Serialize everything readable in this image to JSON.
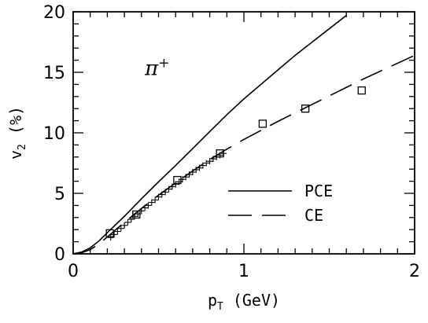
{
  "chart_data": {
    "type": "scatter",
    "title": "",
    "xlabel": "p",
    "xlabel_sub": "T",
    "xlabel_unit": "(GeV)",
    "ylabel": "v",
    "ylabel_sub": "2",
    "ylabel_unit": "(%)",
    "xlim": [
      0,
      2
    ],
    "ylim": [
      0,
      20
    ],
    "x_ticks": [
      0,
      1,
      2
    ],
    "x_tick_labels": [
      "0",
      "1",
      "2"
    ],
    "y_ticks": [
      0,
      5,
      10,
      15,
      20
    ],
    "y_tick_labels": [
      "0",
      "5",
      "10",
      "15",
      "20"
    ],
    "grid": false,
    "annotation": {
      "text": "π",
      "sup": "+",
      "x": 0.42,
      "y": 15.3
    },
    "legend": {
      "placement": "lower-right",
      "entries": [
        {
          "label": "PCE",
          "style": "solid"
        },
        {
          "label": "CE",
          "style": "dashed"
        }
      ]
    },
    "series": [
      {
        "name": "PCE",
        "kind": "line",
        "style": "solid",
        "x": [
          0,
          0.05,
          0.1,
          0.15,
          0.2,
          0.3,
          0.4,
          0.5,
          0.6,
          0.7,
          0.8,
          0.9,
          1.0,
          1.1,
          1.2,
          1.3,
          1.4,
          1.5,
          1.6
        ],
        "y": [
          0,
          0.15,
          0.5,
          1.05,
          1.75,
          3.1,
          4.55,
          5.95,
          7.3,
          8.7,
          10.1,
          11.5,
          12.8,
          14.0,
          15.2,
          16.4,
          17.5,
          18.6,
          19.7
        ]
      },
      {
        "name": "CE",
        "kind": "line",
        "style": "dashed",
        "x": [
          0,
          0.05,
          0.1,
          0.15,
          0.2,
          0.3,
          0.4,
          0.5,
          0.6,
          0.7,
          0.8,
          0.9,
          1.0,
          1.1,
          1.2,
          1.3,
          1.4,
          1.5,
          1.6,
          1.7,
          1.8,
          1.9,
          2.0
        ],
        "y": [
          0,
          0.1,
          0.35,
          0.8,
          1.4,
          2.6,
          3.75,
          4.85,
          5.85,
          6.85,
          7.8,
          8.65,
          9.45,
          10.2,
          10.95,
          11.65,
          12.35,
          13.05,
          13.75,
          14.45,
          15.1,
          15.75,
          16.4
        ]
      },
      {
        "name": "data-squares",
        "kind": "scatter",
        "marker": "square",
        "x": [
          0.215,
          0.37,
          0.61,
          0.86,
          1.11,
          1.36,
          1.69
        ],
        "y": [
          1.7,
          3.25,
          6.1,
          8.3,
          10.75,
          12.0,
          13.5
        ]
      },
      {
        "name": "data-crosses",
        "kind": "scatter",
        "marker": "plus",
        "x": [
          0.22,
          0.24,
          0.26,
          0.28,
          0.3,
          0.32,
          0.34,
          0.36,
          0.38,
          0.4,
          0.42,
          0.44,
          0.46,
          0.48,
          0.5,
          0.52,
          0.54,
          0.56,
          0.58,
          0.6,
          0.62,
          0.64,
          0.66,
          0.68,
          0.7,
          0.72,
          0.74,
          0.76,
          0.78,
          0.8,
          0.82,
          0.84,
          0.86,
          0.88
        ],
        "y": [
          1.35,
          1.6,
          1.85,
          2.1,
          2.35,
          2.6,
          2.85,
          3.1,
          3.3,
          3.55,
          3.8,
          4.0,
          4.25,
          4.45,
          4.7,
          4.9,
          5.1,
          5.35,
          5.55,
          5.75,
          5.95,
          6.15,
          6.35,
          6.55,
          6.75,
          6.95,
          7.1,
          7.3,
          7.5,
          7.65,
          7.85,
          8.0,
          8.15,
          8.3
        ]
      }
    ]
  }
}
